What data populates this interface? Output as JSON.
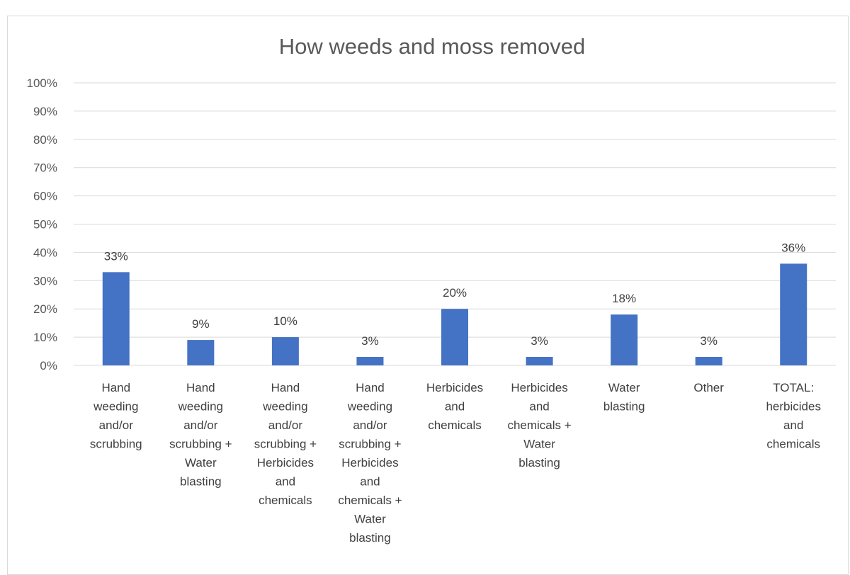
{
  "chart_data": {
    "type": "bar",
    "title": "How weeds and moss removed",
    "categories": [
      "Hand weeding and/or scrubbing",
      "Hand weeding and/or scrubbing + Water blasting",
      "Hand weeding and/or scrubbing + Herbicides and chemicals",
      "Hand weeding and/or scrubbing + Herbicides and chemicals + Water blasting",
      "Herbicides and chemicals",
      "Herbicides and chemicals + Water blasting",
      "Water blasting",
      "Other",
      "TOTAL: herbicides and chemicals"
    ],
    "category_lines": [
      [
        "Hand",
        "weeding",
        "and/or",
        "scrubbing"
      ],
      [
        "Hand",
        "weeding",
        "and/or",
        "scrubbing +",
        "Water",
        "blasting"
      ],
      [
        "Hand",
        "weeding",
        "and/or",
        "scrubbing +",
        "Herbicides",
        "and",
        "chemicals"
      ],
      [
        "Hand",
        "weeding",
        "and/or",
        "scrubbing +",
        "Herbicides",
        "and",
        "chemicals +",
        "Water",
        "blasting"
      ],
      [
        "Herbicides",
        "and",
        "chemicals"
      ],
      [
        "Herbicides",
        "and",
        "chemicals +",
        "Water",
        "blasting"
      ],
      [
        "Water",
        "blasting"
      ],
      [
        "Other"
      ],
      [
        "TOTAL:",
        "herbicides",
        "and",
        "chemicals"
      ]
    ],
    "values": [
      33,
      9,
      10,
      3,
      20,
      3,
      18,
      3,
      36
    ],
    "data_labels": [
      "33%",
      "9%",
      "10%",
      "3%",
      "20%",
      "3%",
      "18%",
      "3%",
      "36%"
    ],
    "y_ticks": [
      "0%",
      "10%",
      "20%",
      "30%",
      "40%",
      "50%",
      "60%",
      "70%",
      "80%",
      "90%",
      "100%"
    ],
    "ylim": [
      0,
      100
    ],
    "xlabel": "",
    "ylabel": "",
    "grid": true,
    "legend": "none",
    "bar_color": "#4472c4",
    "grid_color": "#d9d9d9"
  }
}
